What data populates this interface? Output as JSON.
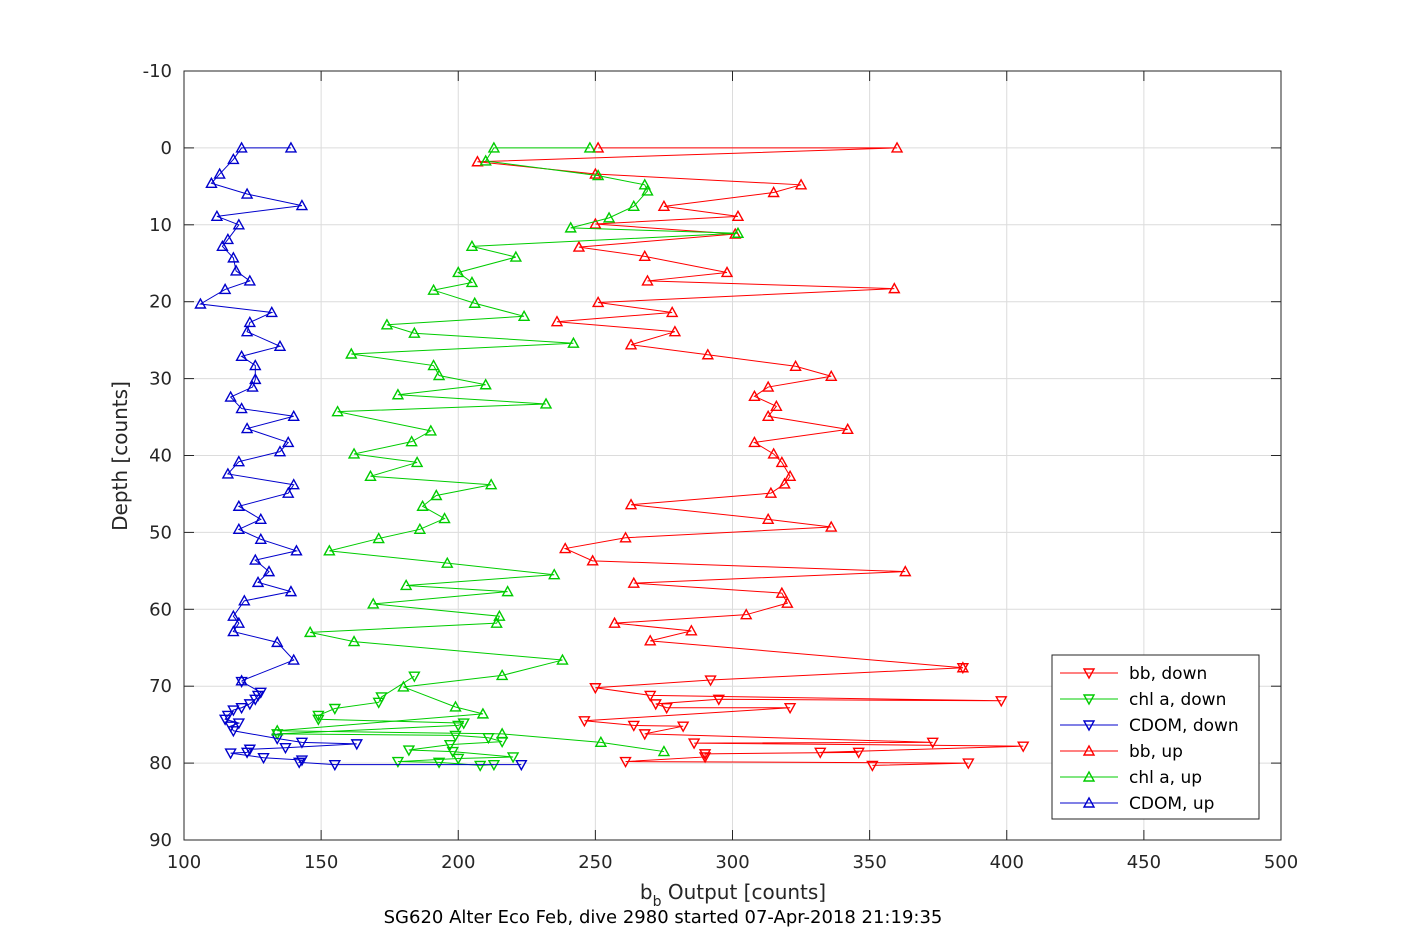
{
  "chart_data": {
    "type": "line",
    "xlabel_main": "b",
    "xlabel_sub": "b",
    "xlabel_rest": " Output [counts]",
    "ylabel": "Depth [counts]",
    "caption": "SG620 Alter Eco Feb, dive 2980 started 07-Apr-2018 21:19:35",
    "xlim": [
      100,
      500
    ],
    "ylim": [
      -10,
      90
    ],
    "y_reversed": true,
    "grid": true,
    "legend_position": "bottom-right",
    "x_ticks": [
      100,
      150,
      200,
      250,
      300,
      350,
      400,
      450,
      500
    ],
    "y_ticks": [
      -10,
      0,
      10,
      20,
      30,
      40,
      50,
      60,
      70,
      80,
      90
    ],
    "series": [
      {
        "name": "bb, down",
        "color": "#ff0000",
        "marker": "triangle-down",
        "points": [
          [
            351,
            80.3
          ],
          [
            386,
            80
          ],
          [
            261,
            79.8
          ],
          [
            290,
            79.2
          ],
          [
            290,
            78.8
          ],
          [
            346,
            78.6
          ],
          [
            332,
            78.6
          ],
          [
            406,
            77.8
          ],
          [
            286,
            77.4
          ],
          [
            373,
            77.3
          ],
          [
            268,
            76.2
          ],
          [
            282,
            75.2
          ],
          [
            264,
            75.1
          ],
          [
            246,
            74.5
          ],
          [
            321,
            72.8
          ],
          [
            276,
            72.8
          ],
          [
            272,
            72.3
          ],
          [
            295,
            71.7
          ],
          [
            398,
            71.9
          ],
          [
            270,
            71.2
          ],
          [
            250,
            70.2
          ],
          [
            292,
            69.2
          ],
          [
            384,
            67.6
          ]
        ]
      },
      {
        "name": "chl a, down",
        "color": "#00cc00",
        "marker": "triangle-down",
        "points": [
          [
            213,
            80.2
          ],
          [
            208,
            80.3
          ],
          [
            193,
            79.9
          ],
          [
            178,
            79.8
          ],
          [
            200,
            79.4
          ],
          [
            220,
            79.2
          ],
          [
            198,
            78.5
          ],
          [
            182,
            78.3
          ],
          [
            197,
            77.6
          ],
          [
            216,
            77.2
          ],
          [
            211,
            76.7
          ],
          [
            199,
            76.4
          ],
          [
            134,
            76.2
          ],
          [
            200,
            75.1
          ],
          [
            202,
            74.8
          ],
          [
            149,
            74.3
          ],
          [
            149,
            73.8
          ],
          [
            155,
            72.9
          ],
          [
            171,
            72.1
          ],
          [
            172,
            71.4
          ],
          [
            184,
            68.7
          ]
        ]
      },
      {
        "name": "CDOM, down",
        "color": "#0000cc",
        "marker": "triangle-down",
        "points": [
          [
            223,
            80.2
          ],
          [
            155,
            80.2
          ],
          [
            142,
            79.9
          ],
          [
            143,
            79.6
          ],
          [
            129,
            79.3
          ],
          [
            117,
            78.7
          ],
          [
            123,
            78.6
          ],
          [
            124,
            78.2
          ],
          [
            137,
            78
          ],
          [
            163,
            77.5
          ],
          [
            143,
            77.3
          ],
          [
            134,
            76.8
          ],
          [
            118,
            75.8
          ],
          [
            117,
            75.2
          ],
          [
            120,
            74.8
          ],
          [
            115,
            74.3
          ],
          [
            116,
            73.8
          ],
          [
            118,
            73.1
          ],
          [
            121,
            72.8
          ],
          [
            124,
            72.3
          ],
          [
            126,
            71.7
          ],
          [
            127,
            71.2
          ],
          [
            128,
            70.8
          ],
          [
            121,
            69.4
          ]
        ]
      },
      {
        "name": "bb, up",
        "color": "#ff0000",
        "marker": "triangle-up",
        "points": [
          [
            251,
            0
          ],
          [
            360,
            0
          ],
          [
            207,
            1.8
          ],
          [
            250,
            3.4
          ],
          [
            325,
            4.8
          ],
          [
            315,
            5.8
          ],
          [
            275,
            7.6
          ],
          [
            302,
            8.9
          ],
          [
            250,
            9.9
          ],
          [
            301,
            11.2
          ],
          [
            244,
            12.9
          ],
          [
            268,
            14.1
          ],
          [
            298,
            16.2
          ],
          [
            269,
            17.3
          ],
          [
            359,
            18.3
          ],
          [
            251,
            20.1
          ],
          [
            278,
            21.4
          ],
          [
            236,
            22.6
          ],
          [
            279,
            23.9
          ],
          [
            263,
            25.6
          ],
          [
            291,
            26.9
          ],
          [
            323,
            28.4
          ],
          [
            336,
            29.7
          ],
          [
            313,
            31.1
          ],
          [
            308,
            32.3
          ],
          [
            316,
            33.6
          ],
          [
            313,
            34.9
          ],
          [
            342,
            36.6
          ],
          [
            308,
            38.3
          ],
          [
            315,
            39.8
          ],
          [
            318,
            40.9
          ],
          [
            321,
            42.7
          ],
          [
            319,
            43.7
          ],
          [
            314,
            44.9
          ],
          [
            263,
            46.4
          ],
          [
            313,
            48.3
          ],
          [
            336,
            49.3
          ],
          [
            261,
            50.7
          ],
          [
            239,
            52.1
          ],
          [
            249,
            53.7
          ],
          [
            363,
            55.1
          ],
          [
            264,
            56.6
          ],
          [
            318,
            57.9
          ],
          [
            320,
            59.2
          ],
          [
            305,
            60.7
          ],
          [
            257,
            61.8
          ],
          [
            285,
            62.8
          ],
          [
            270,
            64.1
          ],
          [
            384,
            67.6
          ]
        ]
      },
      {
        "name": "chl a, up",
        "color": "#00cc00",
        "marker": "triangle-up",
        "points": [
          [
            248,
            0
          ],
          [
            213,
            0
          ],
          [
            210,
            1.7
          ],
          [
            251,
            3.6
          ],
          [
            268,
            4.8
          ],
          [
            269,
            5.6
          ],
          [
            264,
            7.6
          ],
          [
            255,
            9.1
          ],
          [
            241,
            10.4
          ],
          [
            302,
            11.1
          ],
          [
            205,
            12.8
          ],
          [
            221,
            14.2
          ],
          [
            200,
            16.2
          ],
          [
            205,
            17.5
          ],
          [
            191,
            18.5
          ],
          [
            206,
            20.2
          ],
          [
            224,
            21.9
          ],
          [
            174,
            23
          ],
          [
            184,
            24.1
          ],
          [
            242,
            25.4
          ],
          [
            161,
            26.8
          ],
          [
            191,
            28.3
          ],
          [
            193,
            29.6
          ],
          [
            210,
            30.8
          ],
          [
            178,
            32.1
          ],
          [
            232,
            33.3
          ],
          [
            156,
            34.3
          ],
          [
            190,
            36.8
          ],
          [
            183,
            38.2
          ],
          [
            162,
            39.8
          ],
          [
            185,
            40.9
          ],
          [
            168,
            42.7
          ],
          [
            212,
            43.8
          ],
          [
            192,
            45.2
          ],
          [
            187,
            46.6
          ],
          [
            195,
            48.2
          ],
          [
            186,
            49.6
          ],
          [
            171,
            50.8
          ],
          [
            153,
            52.4
          ],
          [
            196,
            54
          ],
          [
            235,
            55.5
          ],
          [
            181,
            56.9
          ],
          [
            218,
            57.7
          ],
          [
            169,
            59.3
          ],
          [
            215,
            60.9
          ],
          [
            214,
            61.8
          ],
          [
            146,
            63
          ],
          [
            162,
            64.2
          ],
          [
            238,
            66.6
          ],
          [
            216,
            68.6
          ],
          [
            180,
            70.1
          ],
          [
            199,
            72.7
          ],
          [
            209,
            73.6
          ],
          [
            134,
            75.8
          ],
          [
            216,
            76.2
          ],
          [
            252,
            77.3
          ],
          [
            275,
            78.5
          ]
        ]
      },
      {
        "name": "CDOM, up",
        "color": "#0000cc",
        "marker": "triangle-up",
        "points": [
          [
            139,
            0
          ],
          [
            121,
            0
          ],
          [
            118,
            1.5
          ],
          [
            113,
            3.4
          ],
          [
            110,
            4.6
          ],
          [
            123,
            6
          ],
          [
            143,
            7.5
          ],
          [
            112,
            8.9
          ],
          [
            120,
            10
          ],
          [
            116,
            11.9
          ],
          [
            114,
            12.8
          ],
          [
            118,
            14.3
          ],
          [
            119,
            16
          ],
          [
            124,
            17.3
          ],
          [
            115,
            18.4
          ],
          [
            106,
            20.3
          ],
          [
            132,
            21.4
          ],
          [
            124,
            22.7
          ],
          [
            123,
            23.9
          ],
          [
            135,
            25.8
          ],
          [
            121,
            27.1
          ],
          [
            126,
            28.3
          ],
          [
            126,
            30.1
          ],
          [
            125,
            31.1
          ],
          [
            117,
            32.4
          ],
          [
            121,
            33.9
          ],
          [
            140,
            34.9
          ],
          [
            123,
            36.5
          ],
          [
            138,
            38.3
          ],
          [
            135,
            39.5
          ],
          [
            120,
            40.8
          ],
          [
            116,
            42.4
          ],
          [
            140,
            43.8
          ],
          [
            138,
            44.9
          ],
          [
            120,
            46.6
          ],
          [
            128,
            48.3
          ],
          [
            120,
            49.6
          ],
          [
            128,
            50.9
          ],
          [
            141,
            52.4
          ],
          [
            126,
            53.6
          ],
          [
            131,
            55.1
          ],
          [
            127,
            56.5
          ],
          [
            139,
            57.7
          ],
          [
            122,
            58.9
          ],
          [
            118,
            60.9
          ],
          [
            120,
            61.8
          ],
          [
            118,
            62.9
          ],
          [
            134,
            64.3
          ],
          [
            140,
            66.6
          ],
          [
            121,
            69.3
          ]
        ]
      }
    ]
  }
}
